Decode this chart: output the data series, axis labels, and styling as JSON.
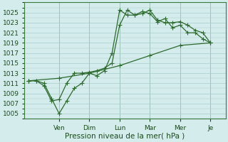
{
  "xlabel": "Pression niveau de la mer( hPa )",
  "bg_color": "#d4ecec",
  "grid_color": "#aacccc",
  "line_color": "#2d6a2d",
  "marker_color": "#2d6a2d",
  "ylim": [
    1004,
    1027
  ],
  "yticks": [
    1005,
    1007,
    1009,
    1011,
    1013,
    1015,
    1017,
    1019,
    1021,
    1023,
    1025
  ],
  "x_day_labels": [
    "Ven",
    "Dim",
    "Lun",
    "Mar",
    "Mer",
    "Je"
  ],
  "x_day_positions": [
    2.0,
    4.0,
    6.0,
    8.0,
    10.0,
    12.0
  ],
  "xlim": [
    -0.3,
    13.0
  ],
  "series1_x": [
    0,
    0.5,
    1.0,
    1.5,
    2.0,
    2.5,
    3.0,
    3.5,
    4.0,
    4.5,
    5.0,
    5.5,
    6.0,
    6.5,
    7.0,
    7.5,
    8.0,
    8.5,
    9.0,
    9.5,
    10.0,
    10.5,
    11.0,
    11.5,
    12.0
  ],
  "series1_y": [
    1011.5,
    1011.5,
    1011.0,
    1008.0,
    1005.0,
    1007.5,
    1010.0,
    1011.0,
    1013.0,
    1012.5,
    1013.5,
    1017.0,
    1025.5,
    1024.5,
    1024.5,
    1024.8,
    1025.5,
    1023.5,
    1023.0,
    1023.0,
    1023.2,
    1022.5,
    1021.5,
    1021.0,
    1019.0
  ],
  "series2_x": [
    0,
    0.5,
    1.0,
    1.5,
    2.0,
    2.5,
    3.0,
    3.5,
    4.0,
    4.5,
    5.0,
    5.5,
    6.0,
    6.5,
    7.0,
    7.5,
    8.0,
    8.5,
    9.0,
    9.5,
    10.0,
    10.5,
    11.0,
    11.5,
    12.0
  ],
  "series2_y": [
    1011.5,
    1011.5,
    1010.5,
    1007.5,
    1007.8,
    1011.0,
    1013.0,
    1013.0,
    1013.2,
    1013.5,
    1014.0,
    1015.0,
    1022.5,
    1025.5,
    1024.5,
    1025.2,
    1024.8,
    1023.2,
    1023.8,
    1022.0,
    1022.5,
    1021.0,
    1021.0,
    1019.8,
    1019.0
  ],
  "series3_x": [
    0,
    2.0,
    4.0,
    6.0,
    8.0,
    10.0,
    12.0
  ],
  "series3_y": [
    1011.5,
    1012.0,
    1013.0,
    1014.5,
    1016.5,
    1018.5,
    1019.0
  ],
  "figsize": [
    3.2,
    2.0
  ],
  "dpi": 100
}
